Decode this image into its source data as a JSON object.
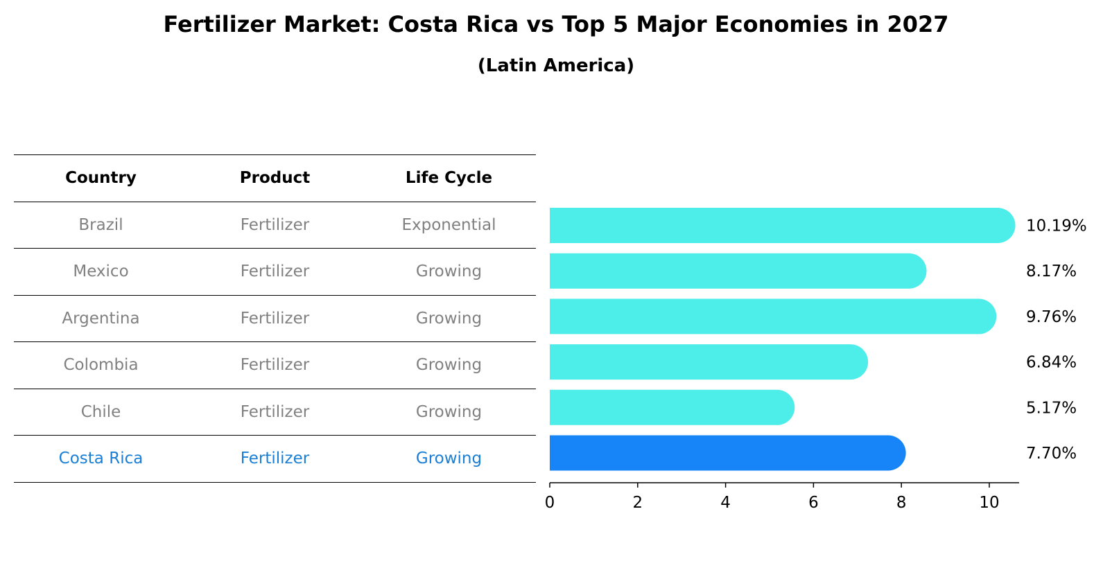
{
  "title": "Fertilizer Market: Costa Rica vs Top 5 Major Economies in 2027",
  "subtitle": "(Latin America)",
  "table": {
    "headers": [
      "Country",
      "Product",
      "Life Cycle"
    ],
    "rows": [
      {
        "country": "Brazil",
        "product": "Fertilizer",
        "life_cycle": "Exponential"
      },
      {
        "country": "Mexico",
        "product": "Fertilizer",
        "life_cycle": "Growing"
      },
      {
        "country": "Argentina",
        "product": "Fertilizer",
        "life_cycle": "Growing"
      },
      {
        "country": "Colombia",
        "product": "Fertilizer",
        "life_cycle": "Growing"
      },
      {
        "country": "Chile",
        "product": "Fertilizer",
        "life_cycle": "Growing"
      },
      {
        "country": "Costa Rica",
        "product": "Fertilizer",
        "life_cycle": "Growing"
      }
    ]
  },
  "chart_data": {
    "type": "bar",
    "orientation": "horizontal",
    "categories": [
      "Brazil",
      "Mexico",
      "Argentina",
      "Colombia",
      "Chile",
      "Costa Rica"
    ],
    "values": [
      10.19,
      8.17,
      9.76,
      6.84,
      5.17,
      7.7
    ],
    "value_labels": [
      "10.19%",
      "8.17%",
      "9.76%",
      "6.84%",
      "5.17%",
      "7.70%"
    ],
    "xticks": [
      "0",
      "2",
      "4",
      "6",
      "8",
      "10"
    ],
    "xlim": [
      0,
      10.7
    ],
    "highlight": "Costa Rica",
    "colors": {
      "default": "#4deeea",
      "highlight": "#1785f7",
      "highlight_text": "#1a7fd4",
      "muted_text": "#808080"
    }
  }
}
